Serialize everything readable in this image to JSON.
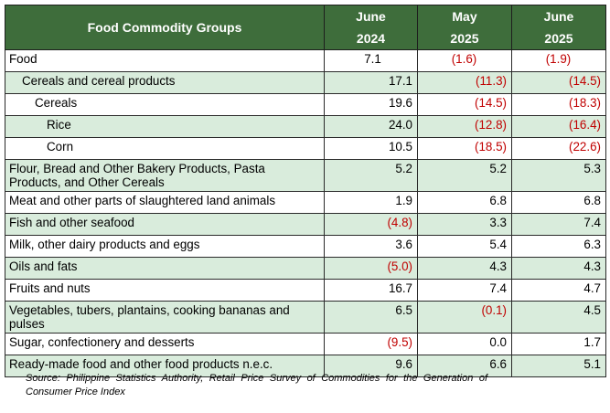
{
  "table": {
    "header": {
      "group_label": "Food Commodity Groups",
      "columns": [
        {
          "month": "June",
          "year": "2024"
        },
        {
          "month": "May",
          "year": "2025"
        },
        {
          "month": "June",
          "year": "2025"
        }
      ]
    },
    "rows": [
      {
        "label": "Food",
        "values": [
          "7.1",
          "(1.6)",
          "(1.9)"
        ],
        "indent": 0,
        "shaded": false
      },
      {
        "label": "Cereals and cereal products",
        "values": [
          "17.1",
          "(11.3)",
          "(14.5)"
        ],
        "indent": 1,
        "shaded": true
      },
      {
        "label": "Cereals",
        "values": [
          "19.6",
          "(14.5)",
          "(18.3)"
        ],
        "indent": 2,
        "shaded": false
      },
      {
        "label": "Rice",
        "values": [
          "24.0",
          "(12.8)",
          "(16.4)"
        ],
        "indent": 3,
        "shaded": true
      },
      {
        "label": "Corn",
        "values": [
          "10.5",
          "(18.5)",
          "(22.6)"
        ],
        "indent": 3,
        "shaded": false
      },
      {
        "label": "Flour, Bread and Other Bakery Products, Pasta Products, and Other Cereals",
        "values": [
          "5.2",
          "5.2",
          "5.3"
        ],
        "indent": 0,
        "shaded": true
      },
      {
        "label": "Meat and other parts of slaughtered land animals",
        "values": [
          "1.9",
          "6.8",
          "6.8"
        ],
        "indent": 0,
        "shaded": false
      },
      {
        "label": "Fish and other seafood",
        "values": [
          "(4.8)",
          "3.3",
          "7.4"
        ],
        "indent": 0,
        "shaded": true
      },
      {
        "label": "Milk, other dairy products and eggs",
        "values": [
          "3.6",
          "5.4",
          "6.3"
        ],
        "indent": 0,
        "shaded": false
      },
      {
        "label": "Oils and fats",
        "values": [
          "(5.0)",
          "4.3",
          "4.3"
        ],
        "indent": 0,
        "shaded": true
      },
      {
        "label": "Fruits and nuts",
        "values": [
          "16.7",
          "7.4",
          "4.7"
        ],
        "indent": 0,
        "shaded": false
      },
      {
        "label": "Vegetables, tubers, plantains, cooking bananas and pulses",
        "values": [
          "6.5",
          "(0.1)",
          "4.5"
        ],
        "indent": 0,
        "shaded": true
      },
      {
        "label": "Sugar, confectionery and desserts",
        "values": [
          "(9.5)",
          "0.0",
          "1.7"
        ],
        "indent": 0,
        "shaded": false
      },
      {
        "label": "Ready-made food and other food products n.e.c.",
        "values": [
          "9.6",
          "6.6",
          "5.1"
        ],
        "indent": 0,
        "shaded": true
      }
    ]
  },
  "source_note": "Source: Philippine Statistics Authority, Retail Price Survey of Commodities for the Generation of Consumer Price Index",
  "colors": {
    "header_bg": "#3e6d3b",
    "header_text": "#ffffff",
    "row_shade": "#d9ecdc",
    "negative_text": "#c00000"
  }
}
